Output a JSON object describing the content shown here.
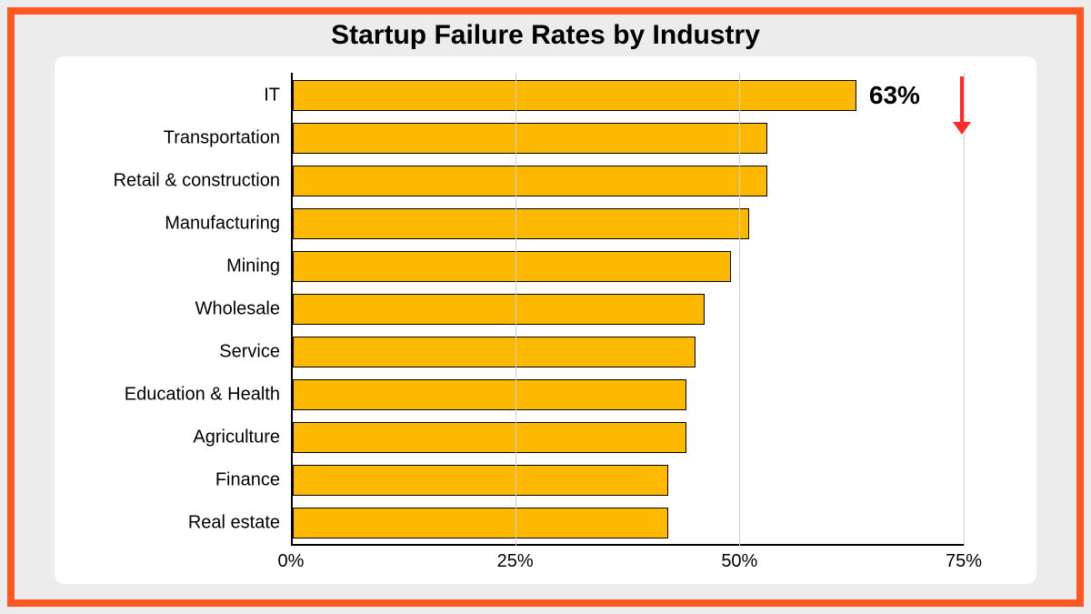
{
  "frame_border_color": "#ff5722",
  "page_background": "#ececec",
  "card_background": "#ffffff",
  "title": "Startup Failure Rates by Industry",
  "title_fontsize": 30,
  "chart": {
    "type": "bar-horizontal",
    "xmin": 0,
    "xmax": 75,
    "xtick_step": 25,
    "xtick_suffix": "%",
    "bar_color": "#fcb900",
    "bar_border_color": "#000000",
    "grid_color": "#cfcfcf",
    "axis_color": "#000000",
    "label_fontsize": 20,
    "tick_fontsize": 20,
    "categories": [
      "IT",
      "Transportation",
      "Retail & construction",
      "Manufacturing",
      "Mining",
      "Wholesale",
      "Service",
      "Education & Health",
      "Agriculture",
      "Finance",
      "Real estate"
    ],
    "values": [
      63,
      53,
      53,
      51,
      49,
      46,
      45,
      44,
      44,
      42,
      42
    ]
  },
  "callout": {
    "text": "63%",
    "fontsize": 28,
    "attach_to_index": 0
  },
  "arrow_color": "#ff2a2a"
}
